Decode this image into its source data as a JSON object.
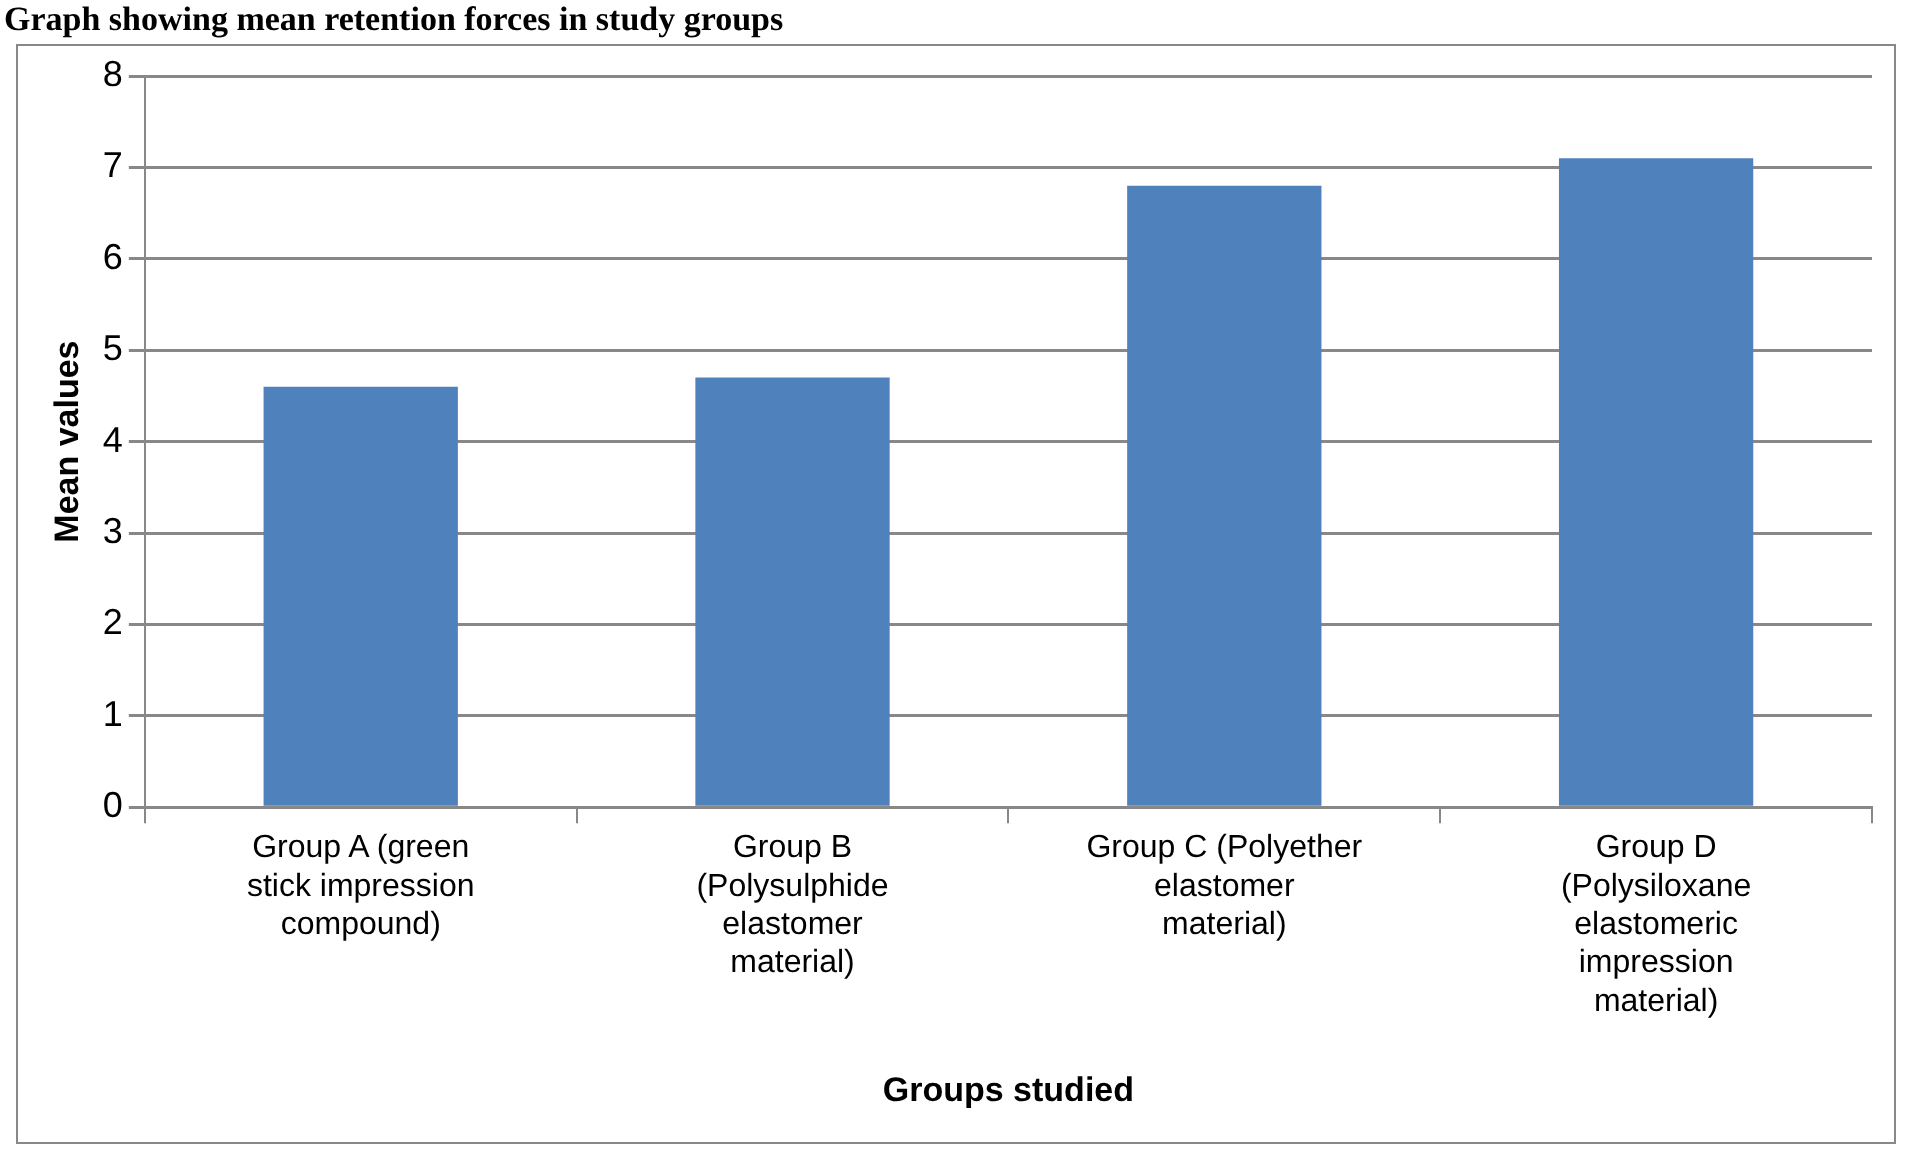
{
  "chart_data": {
    "type": "bar",
    "title": "Graph showing mean retention forces in study groups",
    "xlabel": "Groups studied",
    "ylabel": "Mean values",
    "categories": [
      "Group A (green stick impression compound)",
      "Group B (Polysulphide elastomer material)",
      "Group C (Polyether elastomer material)",
      "Group D (Polysiloxane elastomeric impression material)"
    ],
    "values": [
      4.6,
      4.7,
      6.8,
      7.1
    ],
    "color": "#4f81bd",
    "ylim": [
      0,
      8
    ],
    "yticks": [
      0,
      1,
      2,
      3,
      4,
      5,
      6,
      7,
      8
    ],
    "grid": "y",
    "legend": false
  }
}
